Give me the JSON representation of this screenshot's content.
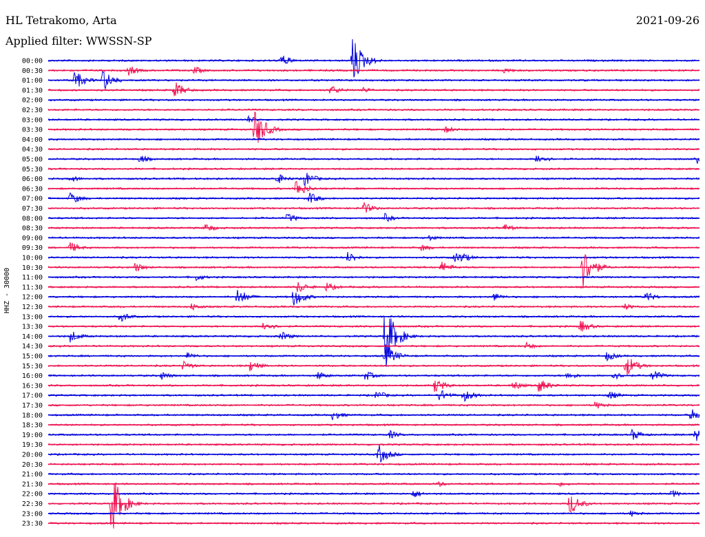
{
  "header": {
    "station": "HL Tetrakomo, Arta",
    "filter": "Applied filter: WWSSN-SP",
    "date": "2021-09-26"
  },
  "chart_data": {
    "type": "line",
    "title": "HL Tetrakomo, Arta",
    "subtitle": "Applied filter: WWSSN-SP",
    "ylabel": "HHZ - 30000",
    "row_minutes": 30,
    "row_labels": [
      "00:00",
      "00:30",
      "01:00",
      "01:30",
      "02:00",
      "02:30",
      "03:00",
      "03:30",
      "04:00",
      "04:30",
      "05:00",
      "05:30",
      "06:00",
      "06:30",
      "07:00",
      "07:30",
      "08:00",
      "08:30",
      "09:00",
      "09:30",
      "10:00",
      "10:30",
      "11:00",
      "11:30",
      "12:00",
      "12:30",
      "13:00",
      "13:30",
      "14:00",
      "14:30",
      "15:00",
      "15:30",
      "16:00",
      "16:30",
      "17:00",
      "17:30",
      "18:00",
      "18:30",
      "19:00",
      "19:30",
      "20:00",
      "20:30",
      "21:00",
      "21:30",
      "22:00",
      "22:30",
      "23:00",
      "23:30"
    ],
    "colors": [
      "#0000dd",
      "#ee1150"
    ],
    "events": [
      {
        "row": 0,
        "minute": 10.7,
        "amp": 10
      },
      {
        "row": 0,
        "minute": 14.0,
        "amp": 38
      },
      {
        "row": 1,
        "minute": 3.7,
        "amp": 8
      },
      {
        "row": 1,
        "minute": 6.7,
        "amp": 7
      },
      {
        "row": 1,
        "minute": 21.0,
        "amp": 5
      },
      {
        "row": 2,
        "minute": 1.2,
        "amp": 15
      },
      {
        "row": 2,
        "minute": 2.5,
        "amp": 18
      },
      {
        "row": 3,
        "minute": 5.8,
        "amp": 14
      },
      {
        "row": 3,
        "minute": 13.0,
        "amp": 8
      },
      {
        "row": 3,
        "minute": 14.5,
        "amp": 5
      },
      {
        "row": 6,
        "minute": 9.2,
        "amp": 6
      },
      {
        "row": 7,
        "minute": 9.5,
        "amp": 32
      },
      {
        "row": 7,
        "minute": 18.3,
        "amp": 6
      },
      {
        "row": 10,
        "minute": 4.2,
        "amp": 7
      },
      {
        "row": 10,
        "minute": 22.5,
        "amp": 9
      },
      {
        "row": 10,
        "minute": 29.9,
        "amp": 7
      },
      {
        "row": 12,
        "minute": 1.0,
        "amp": 6
      },
      {
        "row": 12,
        "minute": 10.5,
        "amp": 9
      },
      {
        "row": 12,
        "minute": 11.8,
        "amp": 12
      },
      {
        "row": 13,
        "minute": 11.4,
        "amp": 15
      },
      {
        "row": 14,
        "minute": 1.0,
        "amp": 10
      },
      {
        "row": 14,
        "minute": 12.0,
        "amp": 10
      },
      {
        "row": 15,
        "minute": 14.5,
        "amp": 10
      },
      {
        "row": 16,
        "minute": 11.0,
        "amp": 8
      },
      {
        "row": 16,
        "minute": 15.5,
        "amp": 7
      },
      {
        "row": 17,
        "minute": 7.2,
        "amp": 8
      },
      {
        "row": 17,
        "minute": 21.0,
        "amp": 7
      },
      {
        "row": 18,
        "minute": 17.5,
        "amp": 5
      },
      {
        "row": 19,
        "minute": 1.0,
        "amp": 9
      },
      {
        "row": 19,
        "minute": 17.2,
        "amp": 6
      },
      {
        "row": 20,
        "minute": 13.8,
        "amp": 9
      },
      {
        "row": 20,
        "minute": 18.7,
        "amp": 8
      },
      {
        "row": 20,
        "minute": 19.0,
        "amp": 9
      },
      {
        "row": 21,
        "minute": 4.0,
        "amp": 8
      },
      {
        "row": 21,
        "minute": 18.1,
        "amp": 10
      },
      {
        "row": 21,
        "minute": 24.6,
        "amp": 34
      },
      {
        "row": 22,
        "minute": 6.8,
        "amp": 6
      },
      {
        "row": 23,
        "minute": 11.5,
        "amp": 10
      },
      {
        "row": 23,
        "minute": 12.8,
        "amp": 8
      },
      {
        "row": 24,
        "minute": 8.7,
        "amp": 14
      },
      {
        "row": 24,
        "minute": 11.3,
        "amp": 16
      },
      {
        "row": 24,
        "minute": 20.5,
        "amp": 7
      },
      {
        "row": 24,
        "minute": 27.5,
        "amp": 9
      },
      {
        "row": 25,
        "minute": 6.6,
        "amp": 6
      },
      {
        "row": 25,
        "minute": 26.5,
        "amp": 6
      },
      {
        "row": 26,
        "minute": 3.3,
        "amp": 9
      },
      {
        "row": 27,
        "minute": 9.9,
        "amp": 9
      },
      {
        "row": 27,
        "minute": 24.5,
        "amp": 10
      },
      {
        "row": 28,
        "minute": 1.0,
        "amp": 10
      },
      {
        "row": 28,
        "minute": 10.7,
        "amp": 8
      },
      {
        "row": 28,
        "minute": 15.5,
        "amp": 50
      },
      {
        "row": 29,
        "minute": 22.0,
        "amp": 6
      },
      {
        "row": 30,
        "minute": 6.4,
        "amp": 6
      },
      {
        "row": 30,
        "minute": 15.5,
        "amp": 20
      },
      {
        "row": 30,
        "minute": 25.7,
        "amp": 8
      },
      {
        "row": 31,
        "minute": 6.2,
        "amp": 8
      },
      {
        "row": 31,
        "minute": 9.3,
        "amp": 10
      },
      {
        "row": 31,
        "minute": 26.6,
        "amp": 18
      },
      {
        "row": 32,
        "minute": 5.2,
        "amp": 7
      },
      {
        "row": 32,
        "minute": 12.4,
        "amp": 7
      },
      {
        "row": 32,
        "minute": 14.6,
        "amp": 8
      },
      {
        "row": 32,
        "minute": 23.9,
        "amp": 7
      },
      {
        "row": 32,
        "minute": 26.0,
        "amp": 7
      },
      {
        "row": 32,
        "minute": 27.8,
        "amp": 10
      },
      {
        "row": 33,
        "minute": 17.8,
        "amp": 12
      },
      {
        "row": 33,
        "minute": 21.4,
        "amp": 8
      },
      {
        "row": 33,
        "minute": 22.6,
        "amp": 12
      },
      {
        "row": 34,
        "minute": 15.1,
        "amp": 8
      },
      {
        "row": 34,
        "minute": 18.0,
        "amp": 10
      },
      {
        "row": 34,
        "minute": 19.1,
        "amp": 11
      },
      {
        "row": 34,
        "minute": 25.8,
        "amp": 8
      },
      {
        "row": 35,
        "minute": 25.2,
        "amp": 7
      },
      {
        "row": 36,
        "minute": 13.1,
        "amp": 8
      },
      {
        "row": 36,
        "minute": 29.6,
        "amp": 10
      },
      {
        "row": 38,
        "minute": 15.7,
        "amp": 7
      },
      {
        "row": 38,
        "minute": 26.9,
        "amp": 9
      },
      {
        "row": 38,
        "minute": 29.8,
        "amp": 11
      },
      {
        "row": 40,
        "minute": 15.2,
        "amp": 16
      },
      {
        "row": 43,
        "minute": 17.9,
        "amp": 5
      },
      {
        "row": 43,
        "minute": 23.5,
        "amp": 5
      },
      {
        "row": 44,
        "minute": 16.8,
        "amp": 7
      },
      {
        "row": 44,
        "minute": 28.7,
        "amp": 6
      },
      {
        "row": 45,
        "minute": 2.9,
        "amp": 48
      },
      {
        "row": 45,
        "minute": 24.0,
        "amp": 18
      },
      {
        "row": 46,
        "minute": 26.8,
        "amp": 6
      }
    ]
  }
}
